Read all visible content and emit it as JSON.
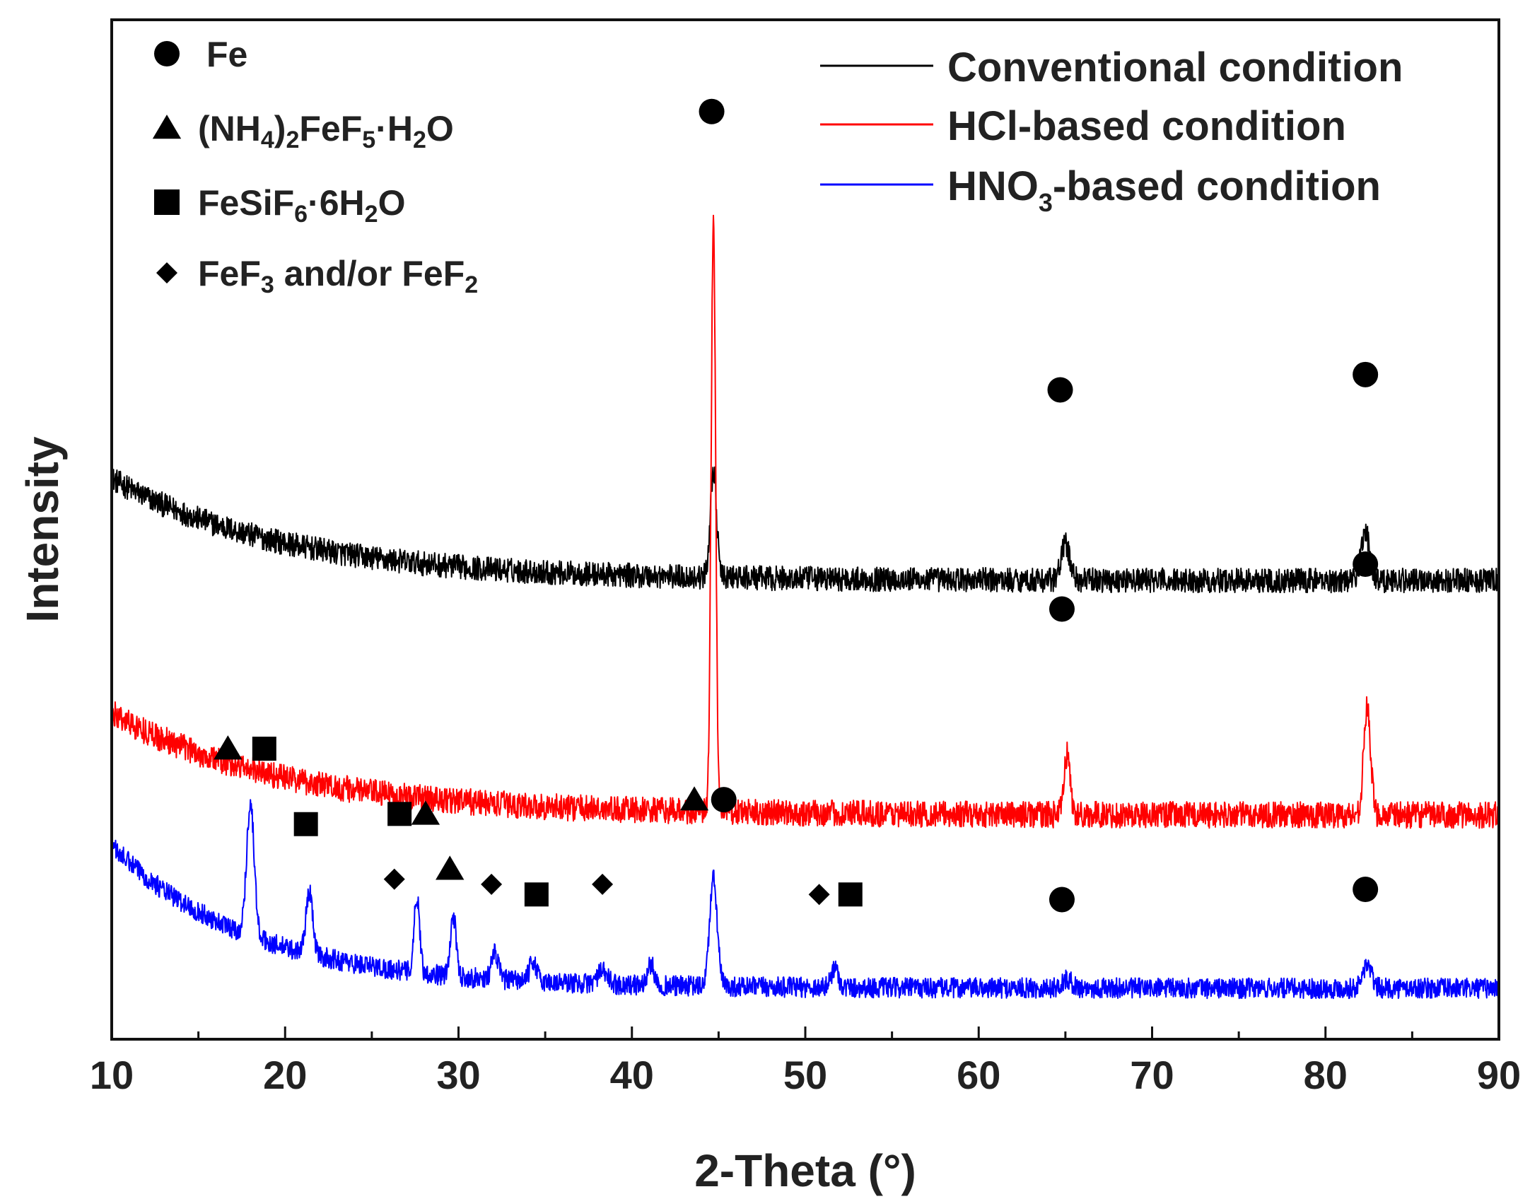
{
  "chart_data": {
    "type": "line",
    "title": "",
    "xlabel": "2-Theta (°)",
    "ylabel": "Intensity",
    "xlim": [
      10,
      90
    ],
    "ylim": [
      0,
      100
    ],
    "y_ticks_shown": false,
    "x_ticks": [
      10,
      20,
      30,
      40,
      50,
      60,
      70,
      80,
      90
    ],
    "series": [
      {
        "name": "Conventional condition",
        "color": "#000000",
        "baseline": 45,
        "tail": [
          10,
          55,
          10
        ],
        "noise": 1.2,
        "peaks": [
          {
            "x": 44.7,
            "h": 10.5,
            "w": 0.18
          },
          {
            "x": 65.0,
            "h": 3.5,
            "w": 0.25
          },
          {
            "x": 82.3,
            "h": 4.8,
            "w": 0.25
          }
        ]
      },
      {
        "name": "HCl-based condition",
        "color": "#ff0000",
        "baseline": 22,
        "tail": [
          10,
          40,
          10
        ],
        "noise": 1.3,
        "peaks": [
          {
            "x": 44.7,
            "h": 58,
            "w": 0.13
          },
          {
            "x": 65.1,
            "h": 6,
            "w": 0.17
          },
          {
            "x": 82.4,
            "h": 10.5,
            "w": 0.2
          }
        ]
      },
      {
        "name": "HNO3-based condition",
        "color": "#0000ff",
        "baseline": 5,
        "tail": [
          14,
          40,
          8
        ],
        "noise": 1.0,
        "peaks": [
          {
            "x": 18.0,
            "h": 13,
            "w": 0.22
          },
          {
            "x": 21.4,
            "h": 6,
            "w": 0.2
          },
          {
            "x": 27.6,
            "h": 7.5,
            "w": 0.16
          },
          {
            "x": 29.7,
            "h": 6,
            "w": 0.16
          },
          {
            "x": 32.1,
            "h": 2.5,
            "w": 0.2
          },
          {
            "x": 34.3,
            "h": 2,
            "w": 0.2
          },
          {
            "x": 38.3,
            "h": 1.2,
            "w": 0.3
          },
          {
            "x": 41.1,
            "h": 2,
            "w": 0.2
          },
          {
            "x": 44.7,
            "h": 10.5,
            "w": 0.22
          },
          {
            "x": 51.7,
            "h": 2,
            "w": 0.2
          },
          {
            "x": 65.1,
            "h": 0.8,
            "w": 0.3
          },
          {
            "x": 82.4,
            "h": 2.3,
            "w": 0.25
          }
        ]
      }
    ],
    "legend": {
      "location": "top-right",
      "entries": [
        {
          "label": "Conventional condition",
          "color": "#000000"
        },
        {
          "label": "HCl-based condition",
          "color": "#ff0000"
        },
        {
          "label": "HNO",
          "sub": "3",
          "after": "-based condition",
          "color": "#0000ff"
        }
      ]
    },
    "phase_legend": {
      "location": "top-left",
      "entries": [
        {
          "symbol": "circle",
          "parts": [
            [
              "Fe",
              ""
            ]
          ]
        },
        {
          "symbol": "triangle",
          "parts": [
            [
              "(NH",
              ""
            ],
            [
              "4",
              "sub"
            ],
            [
              ")",
              ""
            ],
            [
              "2",
              "sub"
            ],
            [
              "FeF",
              ""
            ],
            [
              "5",
              "sub"
            ],
            [
              "·H",
              ""
            ],
            [
              "2",
              "sub"
            ],
            [
              "O",
              ""
            ]
          ]
        },
        {
          "symbol": "square",
          "parts": [
            [
              "FeSiF",
              ""
            ],
            [
              "6",
              "sub"
            ],
            [
              "·6H",
              ""
            ],
            [
              "2",
              "sub"
            ],
            [
              "O",
              ""
            ]
          ]
        },
        {
          "symbol": "diamond",
          "parts": [
            [
              "FeF",
              ""
            ],
            [
              "3",
              "sub"
            ],
            [
              " and/or FeF",
              ""
            ],
            [
              "2",
              "sub"
            ]
          ]
        }
      ]
    },
    "annotations": [
      {
        "symbol": "circle",
        "x": 44.6,
        "y": 91
      },
      {
        "symbol": "circle",
        "x": 64.7,
        "y": 63.7
      },
      {
        "symbol": "circle",
        "x": 82.3,
        "y": 65.2
      },
      {
        "symbol": "circle",
        "x": 64.8,
        "y": 42.2
      },
      {
        "symbol": "circle",
        "x": 82.3,
        "y": 46.6
      },
      {
        "symbol": "triangle",
        "x": 16.7,
        "y": 28.5
      },
      {
        "symbol": "square",
        "x": 18.8,
        "y": 28.5
      },
      {
        "symbol": "square",
        "x": 21.2,
        "y": 21.1
      },
      {
        "symbol": "square",
        "x": 26.6,
        "y": 22.1
      },
      {
        "symbol": "triangle",
        "x": 28.1,
        "y": 22.1
      },
      {
        "symbol": "diamond",
        "x": 26.3,
        "y": 15.7
      },
      {
        "symbol": "triangle",
        "x": 29.5,
        "y": 16.7
      },
      {
        "symbol": "diamond",
        "x": 31.9,
        "y": 15.2
      },
      {
        "symbol": "square",
        "x": 34.5,
        "y": 14.2
      },
      {
        "symbol": "diamond",
        "x": 38.3,
        "y": 15.2
      },
      {
        "symbol": "triangle",
        "x": 43.6,
        "y": 23.5
      },
      {
        "symbol": "circle",
        "x": 45.3,
        "y": 23.5
      },
      {
        "symbol": "diamond",
        "x": 50.8,
        "y": 14.2
      },
      {
        "symbol": "square",
        "x": 52.6,
        "y": 14.2
      },
      {
        "symbol": "circle",
        "x": 64.8,
        "y": 13.7
      },
      {
        "symbol": "circle",
        "x": 82.3,
        "y": 14.7
      }
    ]
  }
}
